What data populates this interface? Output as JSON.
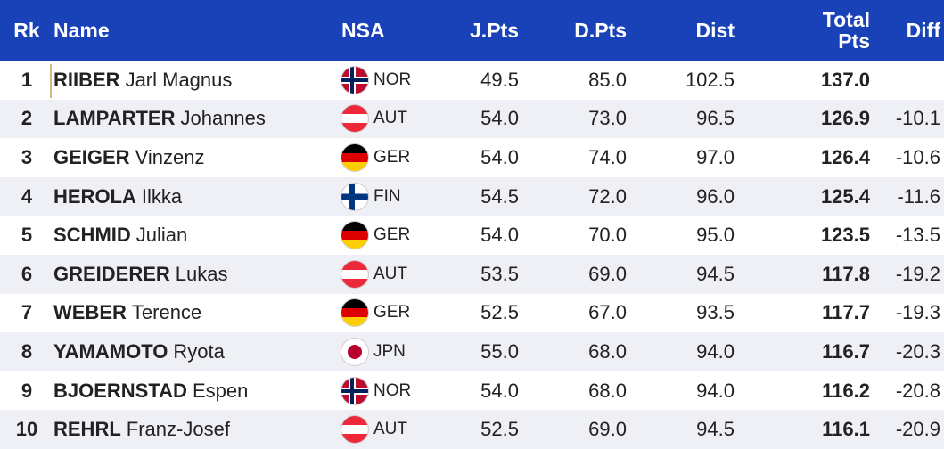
{
  "header": {
    "rk": "Rk",
    "name": "Name",
    "nsa": "NSA",
    "jpts": "J.Pts",
    "dpts": "D.Pts",
    "dist": "Dist",
    "total_line1": "Total",
    "total_line2": "Pts",
    "diff": "Diff"
  },
  "colors": {
    "header_bg": "#1942b8",
    "alt_row": "#eef0f6"
  },
  "rows": [
    {
      "rk": "1",
      "last": "RIIBER",
      "first": "Jarl Magnus",
      "flag": "nor-flag-icon",
      "nsa": "NOR",
      "jpts": "49.5",
      "dpts": "85.0",
      "dist": "102.5",
      "total": "137.0",
      "diff": ""
    },
    {
      "rk": "2",
      "last": "LAMPARTER",
      "first": "Johannes",
      "flag": "aut-flag-icon",
      "nsa": "AUT",
      "jpts": "54.0",
      "dpts": "73.0",
      "dist": "96.5",
      "total": "126.9",
      "diff": "-10.1"
    },
    {
      "rk": "3",
      "last": "GEIGER",
      "first": "Vinzenz",
      "flag": "ger-flag-icon",
      "nsa": "GER",
      "jpts": "54.0",
      "dpts": "74.0",
      "dist": "97.0",
      "total": "126.4",
      "diff": "-10.6"
    },
    {
      "rk": "4",
      "last": "HEROLA",
      "first": "Ilkka",
      "flag": "fin-flag-icon",
      "nsa": "FIN",
      "jpts": "54.5",
      "dpts": "72.0",
      "dist": "96.0",
      "total": "125.4",
      "diff": "-11.6"
    },
    {
      "rk": "5",
      "last": "SCHMID",
      "first": "Julian",
      "flag": "ger-flag-icon",
      "nsa": "GER",
      "jpts": "54.0",
      "dpts": "70.0",
      "dist": "95.0",
      "total": "123.5",
      "diff": "-13.5"
    },
    {
      "rk": "6",
      "last": "GREIDERER",
      "first": "Lukas",
      "flag": "aut-flag-icon",
      "nsa": "AUT",
      "jpts": "53.5",
      "dpts": "69.0",
      "dist": "94.5",
      "total": "117.8",
      "diff": "-19.2"
    },
    {
      "rk": "7",
      "last": "WEBER",
      "first": "Terence",
      "flag": "ger-flag-icon",
      "nsa": "GER",
      "jpts": "52.5",
      "dpts": "67.0",
      "dist": "93.5",
      "total": "117.7",
      "diff": "-19.3"
    },
    {
      "rk": "8",
      "last": "YAMAMOTO",
      "first": "Ryota",
      "flag": "jpn-flag-icon",
      "nsa": "JPN",
      "jpts": "55.0",
      "dpts": "68.0",
      "dist": "94.0",
      "total": "116.7",
      "diff": "-20.3"
    },
    {
      "rk": "9",
      "last": "BJOERNSTAD",
      "first": "Espen",
      "flag": "nor-flag-icon",
      "nsa": "NOR",
      "jpts": "54.0",
      "dpts": "68.0",
      "dist": "94.0",
      "total": "116.2",
      "diff": "-20.8"
    },
    {
      "rk": "10",
      "last": "REHRL",
      "first": "Franz-Josef",
      "flag": "aut-flag-icon",
      "nsa": "AUT",
      "jpts": "52.5",
      "dpts": "69.0",
      "dist": "94.5",
      "total": "116.1",
      "diff": "-20.9"
    }
  ]
}
